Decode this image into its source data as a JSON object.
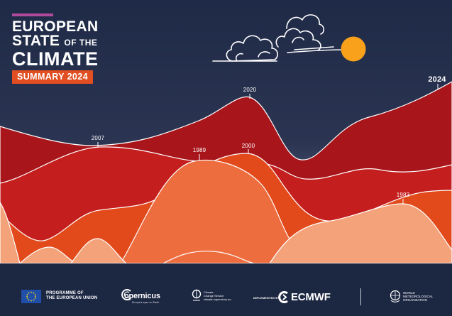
{
  "cover": {
    "title_line1": "EUROPEAN",
    "title_line2a": "STATE",
    "title_line2b": "OF THE",
    "title_line3": "CLIMATE",
    "summary_label": "SUMMARY 2024"
  },
  "year_labels": [
    "2007",
    "1989",
    "2020",
    "2000",
    "1983",
    "2024"
  ],
  "colors": {
    "background": "#1f2a47",
    "layer_darkest": "#a8161c",
    "layer_dark": "#c41f1e",
    "layer_orange": "#e24a1c",
    "layer_coral": "#ee6d3e",
    "layer_peach": "#f4a27a",
    "sun": "#f9a11b",
    "summary_badge": "#e04e21"
  },
  "footer": {
    "eu_line1": "PROGRAMME OF",
    "eu_line2": "THE EUROPEAN UNION",
    "copernicus_name": "opernicus",
    "copernicus_tagline": "Europe's eyes on Earth",
    "c3s_line1": "Climate",
    "c3s_line2": "Change Service",
    "c3s_line3": "climate.copernicus.eu",
    "implemented_by": "IMPLEMENTED BY",
    "ecmwf": "ECMWF",
    "wmo_line1": "WORLD",
    "wmo_line2": "METEOROLOGICAL",
    "wmo_line3": "ORGANIZATION"
  },
  "icons": [
    "cloud-icon",
    "sun-icon",
    "eu-flag-icon",
    "copernicus-icon",
    "c3s-icon",
    "ecmwf-icon",
    "wmo-icon"
  ]
}
